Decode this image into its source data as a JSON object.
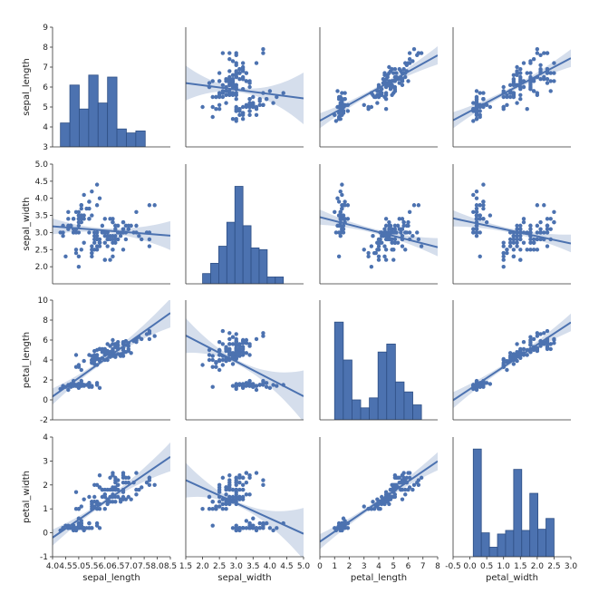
{
  "chart_data": {
    "type": "pairplot",
    "variables": [
      "sepal_length",
      "sepal_width",
      "petal_length",
      "petal_width"
    ],
    "colors": {
      "mark": "#4c72b0",
      "edge": "#2e4f85",
      "band": "#c7d3e6",
      "axis": "#333333"
    },
    "axes": {
      "sepal_length": {
        "range": [
          4.0,
          8.5
        ],
        "ticks": [
          4.0,
          4.5,
          5.0,
          5.5,
          6.0,
          6.5,
          7.0,
          7.5,
          8.0,
          8.5
        ],
        "tick_labels": [
          "4.0",
          "4.5",
          "5.0",
          "5.5",
          "6.0",
          "6.5",
          "7.0",
          "7.5",
          "8.0",
          "8.5"
        ],
        "y_range": [
          3,
          9
        ],
        "y_ticks": [
          3,
          4,
          5,
          6,
          7,
          8,
          9
        ],
        "y_tick_labels": [
          "3",
          "4",
          "5",
          "6",
          "7",
          "8",
          "9"
        ]
      },
      "sepal_width": {
        "range": [
          1.5,
          5.0
        ],
        "ticks": [
          1.5,
          2.0,
          2.5,
          3.0,
          3.5,
          4.0,
          4.5,
          5.0
        ],
        "tick_labels": [
          "1.5",
          "2.0",
          "2.5",
          "3.0",
          "3.5",
          "4.0",
          "4.5",
          "5.0"
        ],
        "y_range": [
          1.5,
          5.0
        ],
        "y_ticks": [
          2.0,
          2.5,
          3.0,
          3.5,
          4.0,
          4.5,
          5.0
        ],
        "y_tick_labels": [
          "2.0",
          "2.5",
          "3.0",
          "3.5",
          "4.0",
          "4.5",
          "5.0"
        ]
      },
      "petal_length": {
        "range": [
          0,
          8
        ],
        "ticks": [
          0,
          1,
          2,
          3,
          4,
          5,
          6,
          7,
          8
        ],
        "tick_labels": [
          "0",
          "1",
          "2",
          "3",
          "4",
          "5",
          "6",
          "7",
          "8"
        ],
        "y_range": [
          -2,
          10
        ],
        "y_ticks": [
          -2,
          0,
          2,
          4,
          6,
          8,
          10
        ],
        "y_tick_labels": [
          "-2",
          "0",
          "2",
          "4",
          "6",
          "8",
          "10"
        ]
      },
      "petal_width": {
        "range": [
          -0.5,
          3.0
        ],
        "ticks": [
          -0.5,
          0.0,
          0.5,
          1.0,
          1.5,
          2.0,
          2.5,
          3.0
        ],
        "tick_labels": [
          "-0.5",
          "0.0",
          "0.5",
          "1.0",
          "1.5",
          "2.0",
          "2.5",
          "3.0"
        ],
        "y_range": [
          -1,
          4
        ],
        "y_ticks": [
          -1,
          0,
          1,
          2,
          3,
          4
        ],
        "y_tick_labels": [
          "-1",
          "0",
          "1",
          "2",
          "3",
          "4"
        ]
      }
    },
    "histograms": {
      "sepal_length": {
        "bin_edges": [
          4.3,
          4.66,
          5.02,
          5.38,
          5.74,
          6.1,
          6.46,
          6.82,
          7.18,
          7.54,
          7.9
        ],
        "counts": [
          4.2,
          6.1,
          4.9,
          6.6,
          5.2,
          6.5,
          3.9,
          3.7,
          3.8,
          0
        ],
        "note_scale": "y axis of row"
      },
      "sepal_width": {
        "bin_edges": [
          2.0,
          2.24,
          2.48,
          2.72,
          2.96,
          3.2,
          3.44,
          3.68,
          3.92,
          4.16,
          4.4
        ],
        "counts": [
          1.8,
          2.1,
          2.6,
          3.3,
          4.35,
          3.2,
          2.55,
          2.5,
          1.7,
          1.7
        ]
      },
      "petal_length": {
        "bin_edges": [
          1.0,
          1.59,
          2.18,
          2.77,
          3.36,
          3.95,
          4.54,
          5.13,
          5.72,
          6.31,
          6.9
        ],
        "counts": [
          7.8,
          4.0,
          0,
          -0.8,
          0.2,
          4.8,
          5.6,
          1.8,
          0.8,
          -0.5
        ]
      },
      "petal_width": {
        "bin_edges": [
          0.1,
          0.34,
          0.58,
          0.82,
          1.06,
          1.3,
          1.54,
          1.78,
          2.02,
          2.26,
          2.5
        ],
        "counts": [
          3.5,
          0.0,
          -0.6,
          -0.05,
          0.1,
          2.65,
          0.1,
          1.65,
          0.15,
          0.6
        ]
      }
    },
    "regressions": {
      "sepal_length|sepal_width": {
        "slope": -0.22,
        "intercept": 6.53
      },
      "sepal_length|petal_length": {
        "slope": 0.41,
        "intercept": 4.31
      },
      "sepal_length|petal_width": {
        "slope": 0.89,
        "intercept": 4.78
      },
      "sepal_width|sepal_length": {
        "slope": -0.06,
        "intercept": 3.42
      },
      "sepal_width|petal_length": {
        "slope": -0.11,
        "intercept": 3.45
      },
      "sepal_width|petal_width": {
        "slope": -0.21,
        "intercept": 3.31
      },
      "petal_length|sepal_length": {
        "slope": 1.86,
        "intercept": -7.1
      },
      "petal_length|sepal_width": {
        "slope": -1.74,
        "intercept": 9.06
      },
      "petal_length|petal_width": {
        "slope": 2.23,
        "intercept": 1.08
      },
      "petal_width|sepal_length": {
        "slope": 0.75,
        "intercept": -3.2
      },
      "petal_width|sepal_width": {
        "slope": -0.64,
        "intercept": 3.16
      },
      "petal_width|petal_length": {
        "slope": 0.42,
        "intercept": -0.37
      }
    },
    "points": [
      [
        5.1,
        3.5,
        1.4,
        0.2
      ],
      [
        4.9,
        3.0,
        1.4,
        0.2
      ],
      [
        4.7,
        3.2,
        1.3,
        0.2
      ],
      [
        4.6,
        3.1,
        1.5,
        0.2
      ],
      [
        5.0,
        3.6,
        1.4,
        0.2
      ],
      [
        5.4,
        3.9,
        1.7,
        0.4
      ],
      [
        4.6,
        3.4,
        1.4,
        0.3
      ],
      [
        5.0,
        3.4,
        1.5,
        0.2
      ],
      [
        4.4,
        2.9,
        1.4,
        0.2
      ],
      [
        4.9,
        3.1,
        1.5,
        0.1
      ],
      [
        5.4,
        3.7,
        1.5,
        0.2
      ],
      [
        4.8,
        3.4,
        1.6,
        0.2
      ],
      [
        4.8,
        3.0,
        1.4,
        0.1
      ],
      [
        4.3,
        3.0,
        1.1,
        0.1
      ],
      [
        5.8,
        4.0,
        1.2,
        0.2
      ],
      [
        5.7,
        4.4,
        1.5,
        0.4
      ],
      [
        5.4,
        3.9,
        1.3,
        0.4
      ],
      [
        5.1,
        3.5,
        1.4,
        0.3
      ],
      [
        5.7,
        3.8,
        1.7,
        0.3
      ],
      [
        5.1,
        3.8,
        1.5,
        0.3
      ],
      [
        5.4,
        3.4,
        1.7,
        0.2
      ],
      [
        5.1,
        3.7,
        1.5,
        0.4
      ],
      [
        4.6,
        3.6,
        1.0,
        0.2
      ],
      [
        5.1,
        3.3,
        1.7,
        0.5
      ],
      [
        4.8,
        3.4,
        1.9,
        0.2
      ],
      [
        5.0,
        3.0,
        1.6,
        0.2
      ],
      [
        5.0,
        3.4,
        1.6,
        0.4
      ],
      [
        5.2,
        3.5,
        1.5,
        0.2
      ],
      [
        5.2,
        3.4,
        1.4,
        0.2
      ],
      [
        4.7,
        3.2,
        1.6,
        0.2
      ],
      [
        4.8,
        3.1,
        1.6,
        0.2
      ],
      [
        5.4,
        3.4,
        1.5,
        0.4
      ],
      [
        5.2,
        4.1,
        1.5,
        0.1
      ],
      [
        5.5,
        4.2,
        1.4,
        0.2
      ],
      [
        4.9,
        3.1,
        1.5,
        0.2
      ],
      [
        5.0,
        3.2,
        1.2,
        0.2
      ],
      [
        5.5,
        3.5,
        1.3,
        0.2
      ],
      [
        4.9,
        3.6,
        1.4,
        0.1
      ],
      [
        4.4,
        3.0,
        1.3,
        0.2
      ],
      [
        5.1,
        3.4,
        1.5,
        0.2
      ],
      [
        5.0,
        3.5,
        1.3,
        0.3
      ],
      [
        4.5,
        2.3,
        1.3,
        0.3
      ],
      [
        4.4,
        3.2,
        1.3,
        0.2
      ],
      [
        5.0,
        3.5,
        1.6,
        0.6
      ],
      [
        5.1,
        3.8,
        1.9,
        0.4
      ],
      [
        4.8,
        3.0,
        1.4,
        0.3
      ],
      [
        5.1,
        3.8,
        1.6,
        0.2
      ],
      [
        4.6,
        3.2,
        1.4,
        0.2
      ],
      [
        5.3,
        3.7,
        1.5,
        0.2
      ],
      [
        5.0,
        3.3,
        1.4,
        0.2
      ],
      [
        7.0,
        3.2,
        4.7,
        1.4
      ],
      [
        6.4,
        3.2,
        4.5,
        1.5
      ],
      [
        6.9,
        3.1,
        4.9,
        1.5
      ],
      [
        5.5,
        2.3,
        4.0,
        1.3
      ],
      [
        6.5,
        2.8,
        4.6,
        1.5
      ],
      [
        5.7,
        2.8,
        4.5,
        1.3
      ],
      [
        6.3,
        3.3,
        4.7,
        1.6
      ],
      [
        4.9,
        2.4,
        3.3,
        1.0
      ],
      [
        6.6,
        2.9,
        4.6,
        1.3
      ],
      [
        5.2,
        2.7,
        3.9,
        1.4
      ],
      [
        5.0,
        2.0,
        3.5,
        1.0
      ],
      [
        5.9,
        3.0,
        4.2,
        1.5
      ],
      [
        6.0,
        2.2,
        4.0,
        1.0
      ],
      [
        6.1,
        2.9,
        4.7,
        1.4
      ],
      [
        5.6,
        2.9,
        3.6,
        1.3
      ],
      [
        6.7,
        3.1,
        4.4,
        1.4
      ],
      [
        5.6,
        3.0,
        4.5,
        1.5
      ],
      [
        5.8,
        2.7,
        4.1,
        1.0
      ],
      [
        6.2,
        2.2,
        4.5,
        1.5
      ],
      [
        5.6,
        2.5,
        3.9,
        1.1
      ],
      [
        5.9,
        3.2,
        4.8,
        1.8
      ],
      [
        6.1,
        2.8,
        4.0,
        1.3
      ],
      [
        6.3,
        2.5,
        4.9,
        1.5
      ],
      [
        6.1,
        2.8,
        4.7,
        1.2
      ],
      [
        6.4,
        2.9,
        4.3,
        1.3
      ],
      [
        6.6,
        3.0,
        4.4,
        1.4
      ],
      [
        6.8,
        2.8,
        4.8,
        1.4
      ],
      [
        6.7,
        3.0,
        5.0,
        1.7
      ],
      [
        6.0,
        2.9,
        4.5,
        1.5
      ],
      [
        5.7,
        2.6,
        3.5,
        1.0
      ],
      [
        5.5,
        2.4,
        3.8,
        1.1
      ],
      [
        5.5,
        2.4,
        3.7,
        1.0
      ],
      [
        5.8,
        2.7,
        3.9,
        1.2
      ],
      [
        6.0,
        2.7,
        5.1,
        1.6
      ],
      [
        5.4,
        3.0,
        4.5,
        1.5
      ],
      [
        6.0,
        3.4,
        4.5,
        1.6
      ],
      [
        6.7,
        3.1,
        4.7,
        1.5
      ],
      [
        6.3,
        2.3,
        4.4,
        1.3
      ],
      [
        5.6,
        3.0,
        4.1,
        1.3
      ],
      [
        5.5,
        2.5,
        4.0,
        1.3
      ],
      [
        5.5,
        2.6,
        4.4,
        1.2
      ],
      [
        6.1,
        3.0,
        4.6,
        1.4
      ],
      [
        5.8,
        2.6,
        4.0,
        1.2
      ],
      [
        5.0,
        2.3,
        3.3,
        1.0
      ],
      [
        5.6,
        2.7,
        4.2,
        1.3
      ],
      [
        5.7,
        3.0,
        4.2,
        1.2
      ],
      [
        5.7,
        2.9,
        4.2,
        1.3
      ],
      [
        6.2,
        2.9,
        4.3,
        1.3
      ],
      [
        5.1,
        2.5,
        3.0,
        1.1
      ],
      [
        5.7,
        2.8,
        4.1,
        1.3
      ],
      [
        6.3,
        3.3,
        6.0,
        2.5
      ],
      [
        5.8,
        2.7,
        5.1,
        1.9
      ],
      [
        7.1,
        3.0,
        5.9,
        2.1
      ],
      [
        6.3,
        2.9,
        5.6,
        1.8
      ],
      [
        6.5,
        3.0,
        5.8,
        2.2
      ],
      [
        7.6,
        3.0,
        6.6,
        2.1
      ],
      [
        4.9,
        2.5,
        4.5,
        1.7
      ],
      [
        7.3,
        2.9,
        6.3,
        1.8
      ],
      [
        6.7,
        2.5,
        5.8,
        1.8
      ],
      [
        7.2,
        3.6,
        6.1,
        2.5
      ],
      [
        6.5,
        3.2,
        5.1,
        2.0
      ],
      [
        6.4,
        2.7,
        5.3,
        1.9
      ],
      [
        6.8,
        3.0,
        5.5,
        2.1
      ],
      [
        5.7,
        2.5,
        5.0,
        2.0
      ],
      [
        5.8,
        2.8,
        5.1,
        2.4
      ],
      [
        6.4,
        3.2,
        5.3,
        2.3
      ],
      [
        6.5,
        3.0,
        5.5,
        1.8
      ],
      [
        7.7,
        3.8,
        6.7,
        2.2
      ],
      [
        7.7,
        2.6,
        6.9,
        2.3
      ],
      [
        6.0,
        2.2,
        5.0,
        1.5
      ],
      [
        6.9,
        3.2,
        5.7,
        2.3
      ],
      [
        5.6,
        2.8,
        4.9,
        2.0
      ],
      [
        7.7,
        2.8,
        6.7,
        2.0
      ],
      [
        6.3,
        2.7,
        4.9,
        1.8
      ],
      [
        6.7,
        3.3,
        5.7,
        2.1
      ],
      [
        7.2,
        3.2,
        6.0,
        1.8
      ],
      [
        6.2,
        2.8,
        4.8,
        1.8
      ],
      [
        6.1,
        3.0,
        4.9,
        1.8
      ],
      [
        6.4,
        2.8,
        5.6,
        2.1
      ],
      [
        7.2,
        3.0,
        5.8,
        1.6
      ],
      [
        7.4,
        2.8,
        6.1,
        1.9
      ],
      [
        7.9,
        3.8,
        6.4,
        2.0
      ],
      [
        6.4,
        2.8,
        5.6,
        2.2
      ],
      [
        6.3,
        2.8,
        5.1,
        1.5
      ],
      [
        6.1,
        2.6,
        5.6,
        1.4
      ],
      [
        7.7,
        3.0,
        6.1,
        2.3
      ],
      [
        6.3,
        3.4,
        5.6,
        2.4
      ],
      [
        6.4,
        3.1,
        5.5,
        1.8
      ],
      [
        6.0,
        3.0,
        4.8,
        1.8
      ],
      [
        6.9,
        3.1,
        5.4,
        2.1
      ],
      [
        6.7,
        3.1,
        5.6,
        2.4
      ],
      [
        6.9,
        3.1,
        5.1,
        2.3
      ],
      [
        5.8,
        2.7,
        5.1,
        1.9
      ],
      [
        6.8,
        3.2,
        5.9,
        2.3
      ],
      [
        6.7,
        3.3,
        5.7,
        2.5
      ],
      [
        6.7,
        3.0,
        5.2,
        2.3
      ],
      [
        6.3,
        2.5,
        5.0,
        1.9
      ],
      [
        6.5,
        3.0,
        5.2,
        2.0
      ],
      [
        6.2,
        3.4,
        5.4,
        2.3
      ],
      [
        5.9,
        3.0,
        5.1,
        1.8
      ]
    ]
  }
}
